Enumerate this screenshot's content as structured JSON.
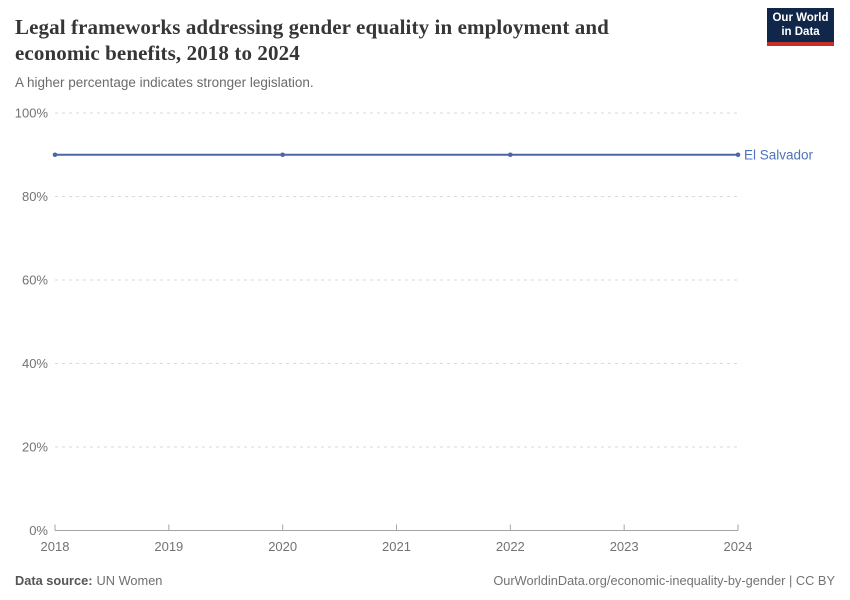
{
  "header": {
    "title_lines": [
      "Legal frameworks addressing gender equality in employment and",
      "economic benefits, 2018 to 2024"
    ],
    "subtitle": "A higher percentage indicates stronger legislation."
  },
  "logo": {
    "line1": "Our World",
    "line2": "in Data",
    "bg_color": "#10274a",
    "stripe_color": "#c5302b",
    "text_color": "#ffffff"
  },
  "chart_data": {
    "type": "line",
    "title": "Legal frameworks addressing gender equality in employment and economic benefits, 2018 to 2024",
    "subtitle": "A higher percentage indicates stronger legislation.",
    "x": [
      2018,
      2020,
      2022,
      2024
    ],
    "series": [
      {
        "name": "El Salvador",
        "values": [
          90,
          90,
          90,
          90
        ],
        "line_color": "#4a67a8",
        "label_color": "#4d73bd"
      }
    ],
    "xlim": [
      2018,
      2024
    ],
    "ylim": [
      0,
      100
    ],
    "x_ticks": [
      2018,
      2019,
      2020,
      2021,
      2022,
      2023,
      2024
    ],
    "y_ticks": [
      0,
      20,
      40,
      60,
      80,
      100
    ],
    "y_tick_suffix": "%",
    "grid": "horizontal-dashed",
    "legend_position": "end-of-line-label",
    "axis_color": "#a5a5a5",
    "grid_color": "#d8d8d8",
    "tick_label_color": "#737373"
  },
  "footer": {
    "source_label": "Data source:",
    "source_value": "UN Women",
    "credit": "OurWorldinData.org/economic-inequality-by-gender | CC BY"
  }
}
